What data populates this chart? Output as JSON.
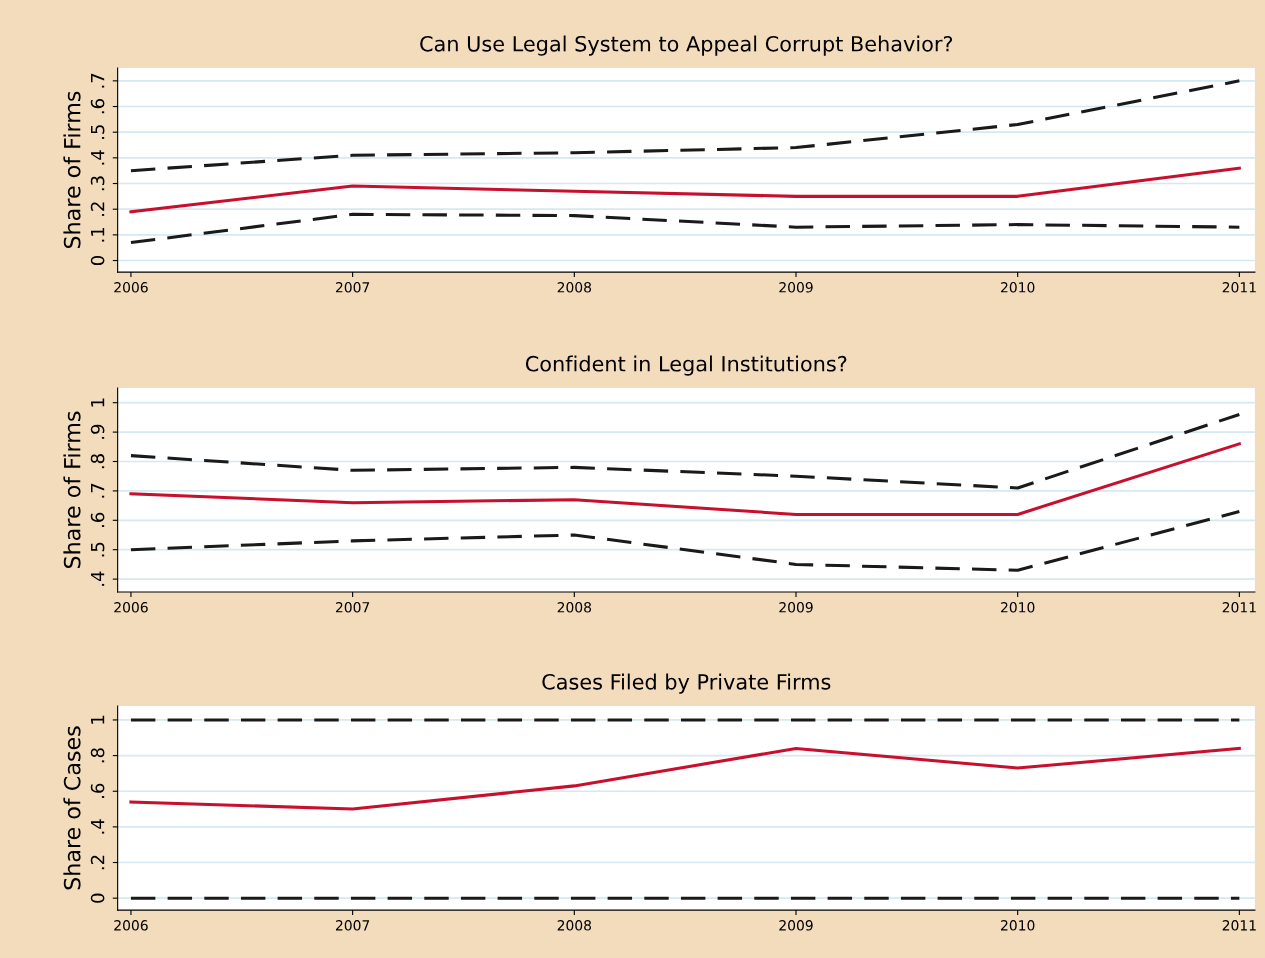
{
  "chart_data": [
    {
      "type": "line",
      "title": "Can Use Legal System to Appeal Corrupt Behavior?",
      "ylabel": "Share of Firms",
      "x": [
        2006,
        2007,
        2008,
        2009,
        2010,
        2011
      ],
      "xlim": [
        2005.94,
        2011.07
      ],
      "xticks": [
        2006,
        2007,
        2008,
        2009,
        2010,
        2011
      ],
      "ylim": [
        -0.045,
        0.75
      ],
      "yticks": [
        {
          "value": 0,
          "label": "0"
        },
        {
          "value": 0.1,
          "label": ".1"
        },
        {
          "value": 0.2,
          "label": ".2"
        },
        {
          "value": 0.3,
          "label": ".3"
        },
        {
          "value": 0.4,
          "label": ".4"
        },
        {
          "value": 0.5,
          "label": ".5"
        },
        {
          "value": 0.6,
          "label": ".6"
        },
        {
          "value": 0.7,
          "label": ".7"
        }
      ],
      "grid": "y",
      "series": [
        {
          "color": "#1a1a1a",
          "line_style": "dashed",
          "values": [
            0.35,
            0.41,
            0.42,
            0.44,
            0.53,
            0.7
          ]
        },
        {
          "color": "#c8102e",
          "line_style": "solid",
          "values": [
            0.19,
            0.29,
            0.27,
            0.25,
            0.25,
            0.36
          ]
        },
        {
          "color": "#1a1a1a",
          "line_style": "dashed",
          "values": [
            0.07,
            0.18,
            0.175,
            0.13,
            0.14,
            0.13
          ]
        }
      ]
    },
    {
      "type": "line",
      "title": "Confident in Legal Institutions?",
      "ylabel": "Share of Firms",
      "x": [
        2006,
        2007,
        2008,
        2009,
        2010,
        2011
      ],
      "xlim": [
        2005.94,
        2011.07
      ],
      "xticks": [
        2006,
        2007,
        2008,
        2009,
        2010,
        2011
      ],
      "ylim": [
        0.356,
        1.05
      ],
      "yticks": [
        {
          "value": 0.4,
          "label": ".4"
        },
        {
          "value": 0.5,
          "label": ".5"
        },
        {
          "value": 0.6,
          "label": ".6"
        },
        {
          "value": 0.7,
          "label": ".7"
        },
        {
          "value": 0.8,
          "label": ".8"
        },
        {
          "value": 0.9,
          "label": ".9"
        },
        {
          "value": 1,
          "label": "1"
        }
      ],
      "grid": "y",
      "series": [
        {
          "color": "#1a1a1a",
          "line_style": "dashed",
          "values": [
            0.82,
            0.77,
            0.78,
            0.75,
            0.71,
            0.96
          ]
        },
        {
          "color": "#c8102e",
          "line_style": "solid",
          "values": [
            0.69,
            0.66,
            0.67,
            0.62,
            0.62,
            0.86
          ]
        },
        {
          "color": "#1a1a1a",
          "line_style": "dashed",
          "values": [
            0.5,
            0.53,
            0.55,
            0.45,
            0.43,
            0.63
          ]
        }
      ]
    },
    {
      "type": "line",
      "title": "Cases Filed by Private Firms",
      "ylabel": "Share of Cases",
      "x": [
        2006,
        2007,
        2008,
        2009,
        2010,
        2011
      ],
      "xlim": [
        2005.94,
        2011.07
      ],
      "xticks": [
        2006,
        2007,
        2008,
        2009,
        2010,
        2011
      ],
      "ylim": [
        -0.067,
        1.078
      ],
      "yticks": [
        {
          "value": 0,
          "label": "0"
        },
        {
          "value": 0.2,
          "label": ".2"
        },
        {
          "value": 0.4,
          "label": ".4"
        },
        {
          "value": 0.6,
          "label": ".6"
        },
        {
          "value": 0.8,
          "label": ".8"
        },
        {
          "value": 1,
          "label": "1"
        }
      ],
      "grid": "y",
      "series": [
        {
          "color": "#1a1a1a",
          "line_style": "dashed",
          "values": [
            1,
            1,
            1,
            1,
            1,
            1
          ]
        },
        {
          "color": "#c8102e",
          "line_style": "solid",
          "values": [
            0.54,
            0.5,
            0.63,
            0.84,
            0.73,
            0.84
          ]
        },
        {
          "color": "#1a1a1a",
          "line_style": "dashed",
          "values": [
            0,
            0,
            0,
            0,
            0,
            0
          ]
        }
      ]
    }
  ]
}
